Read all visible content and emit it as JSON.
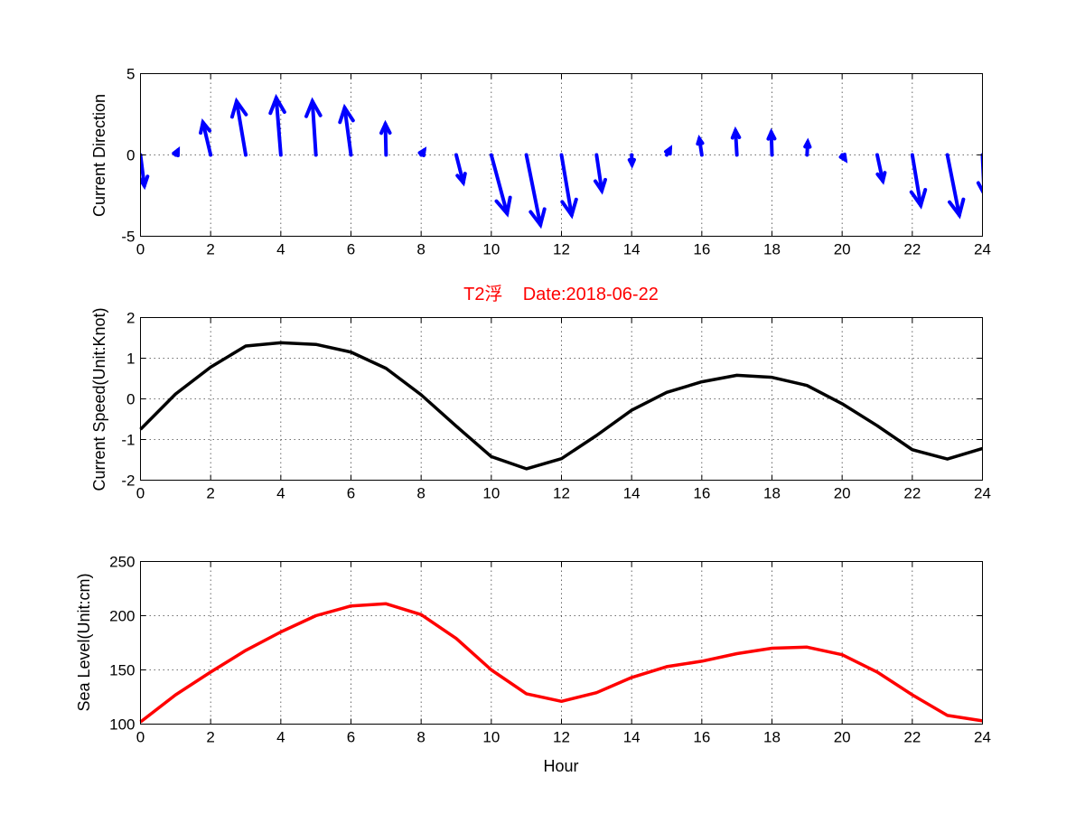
{
  "colors": {
    "direction": "#0000ff",
    "speed": "#000000",
    "sea_level": "#ff0000",
    "title": "#ff0000"
  },
  "chart_data": [
    {
      "type": "quiver",
      "title": "",
      "xlabel": "",
      "ylabel": "Current Direction",
      "xlim": [
        0,
        24
      ],
      "ylim": [
        -5,
        5
      ],
      "xticks": [
        0,
        2,
        4,
        6,
        8,
        10,
        12,
        14,
        16,
        18,
        20,
        22,
        24
      ],
      "yticks": [
        -5,
        0,
        5
      ],
      "grid": true,
      "color": "#0000ff",
      "x": [
        0,
        1,
        2,
        3,
        4,
        5,
        6,
        7,
        8,
        9,
        10,
        11,
        12,
        13,
        14,
        15,
        16,
        17,
        18,
        19,
        20,
        21,
        22,
        23,
        24
      ],
      "u": [
        0.11,
        0.07,
        -0.22,
        -0.26,
        -0.13,
        -0.1,
        -0.18,
        -0.02,
        0.09,
        0.2,
        0.45,
        0.4,
        0.29,
        0.15,
        0.01,
        0.1,
        -0.07,
        -0.04,
        -0.02,
        0.02,
        0.09,
        0.16,
        0.24,
        0.34,
        0.05
      ],
      "v": [
        -1.9,
        0.3,
        2.0,
        3.3,
        3.5,
        3.3,
        2.9,
        1.9,
        0.3,
        -1.7,
        -3.6,
        -4.3,
        -3.7,
        -2.2,
        -0.6,
        0.4,
        1.0,
        1.5,
        1.4,
        0.8,
        -0.3,
        -1.6,
        -3.1,
        -3.7,
        -2.4
      ]
    },
    {
      "type": "line",
      "title": "T2浮    Date:2018-06-22",
      "xlabel": "",
      "ylabel": "Current Speed(Unit:Knot)",
      "xlim": [
        0,
        24
      ],
      "ylim": [
        -2,
        2
      ],
      "xticks": [
        0,
        2,
        4,
        6,
        8,
        10,
        12,
        14,
        16,
        18,
        20,
        22,
        24
      ],
      "yticks": [
        -2,
        -1,
        0,
        1,
        2
      ],
      "grid": true,
      "x": [
        0,
        1,
        2,
        3,
        4,
        5,
        6,
        7,
        8,
        9,
        10,
        11,
        12,
        13,
        14,
        15,
        16,
        17,
        18,
        19,
        20,
        21,
        22,
        23,
        24
      ],
      "series": [
        {
          "color": "#000000",
          "values": [
            -0.75,
            0.12,
            0.78,
            1.3,
            1.38,
            1.34,
            1.15,
            0.75,
            0.1,
            -0.67,
            -1.42,
            -1.72,
            -1.47,
            -0.9,
            -0.28,
            0.16,
            0.42,
            0.58,
            0.53,
            0.33,
            -0.12,
            -0.66,
            -1.25,
            -1.48,
            -1.22
          ]
        }
      ]
    },
    {
      "type": "line",
      "title": "",
      "xlabel": "Hour",
      "ylabel": "Sea Level(Unit:cm)",
      "xlim": [
        0,
        24
      ],
      "ylim": [
        100,
        250
      ],
      "xticks": [
        0,
        2,
        4,
        6,
        8,
        10,
        12,
        14,
        16,
        18,
        20,
        22,
        24
      ],
      "yticks": [
        100,
        150,
        200,
        250
      ],
      "grid": true,
      "x": [
        0,
        1,
        2,
        3,
        4,
        5,
        6,
        7,
        8,
        9,
        10,
        11,
        12,
        13,
        14,
        15,
        16,
        17,
        18,
        19,
        20,
        21,
        22,
        23,
        24
      ],
      "series": [
        {
          "color": "#ff0000",
          "values": [
            102,
            127,
            148,
            168,
            185,
            200,
            209,
            211,
            201,
            179,
            150,
            128,
            121,
            129,
            143,
            153,
            158,
            165,
            170,
            171,
            164,
            148,
            127,
            108,
            103
          ]
        }
      ]
    }
  ]
}
